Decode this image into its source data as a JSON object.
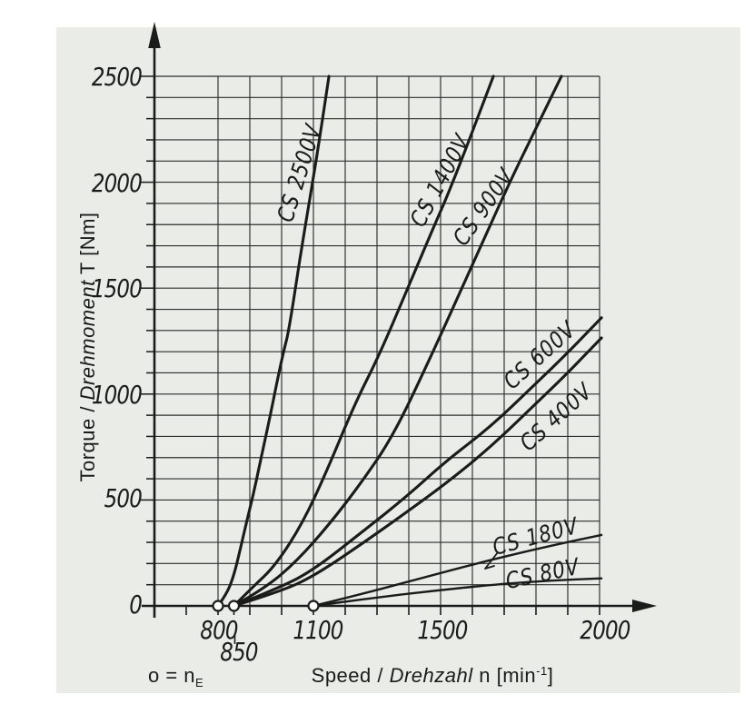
{
  "page": {
    "background": "#ffffff",
    "panel_color": "#e9ece7",
    "ink": "#1b1b1b",
    "grid_color": "#2e2e2e"
  },
  "chart_data": {
    "type": "line",
    "title": "",
    "x_axis": {
      "label": {
        "pre": "Speed / ",
        "italic": "Drehzahl",
        "post": " n [min",
        "sup": "-1",
        "close": "]"
      },
      "tick_labels": [
        {
          "value": 800,
          "label": "800"
        },
        {
          "value": 850,
          "label": "850"
        },
        {
          "value": 1100,
          "label": "1100"
        },
        {
          "value": 1500,
          "label": "1500"
        },
        {
          "value": 2000,
          "label": "2000"
        }
      ],
      "grid": {
        "min": 800,
        "max": 2000,
        "step": 100
      },
      "ticks": {
        "min": 700,
        "max": 2000,
        "step": 100,
        "extra": [
          850
        ]
      },
      "xlim": [
        600,
        2100
      ]
    },
    "y_axis": {
      "label": {
        "pre": "Torque / ",
        "italic": "Drehmoment",
        "post": " T [Nm]"
      },
      "tick_labels": [
        {
          "value": 0,
          "label": "0"
        },
        {
          "value": 500,
          "label": "500"
        },
        {
          "value": 1000,
          "label": "1000"
        },
        {
          "value": 1500,
          "label": "1500"
        },
        {
          "value": 2000,
          "label": "2000"
        },
        {
          "value": 2500,
          "label": "2500"
        }
      ],
      "grid": {
        "min": 100,
        "max": 2500,
        "step": 100
      },
      "ylim": [
        0,
        2500
      ]
    },
    "note": {
      "main": "o = n",
      "sub": "E"
    },
    "engagement_speeds": [
      800,
      850,
      1100
    ],
    "series": [
      {
        "label": "CS 2500V",
        "n_e": 800,
        "points": [
          [
            800,
            0
          ],
          [
            829,
            60
          ],
          [
            851,
            150
          ],
          [
            871,
            275
          ],
          [
            891,
            405
          ],
          [
            914,
            545
          ],
          [
            940,
            730
          ],
          [
            965,
            905
          ],
          [
            985,
            1055
          ],
          [
            1006,
            1200
          ],
          [
            1023,
            1300
          ],
          [
            1063,
            1695
          ],
          [
            1109,
            2100
          ],
          [
            1149,
            2500
          ]
        ]
      },
      {
        "label": "CS 1400V",
        "n_e": 850,
        "points": [
          [
            850,
            0
          ],
          [
            910,
            90
          ],
          [
            980,
            190
          ],
          [
            1066,
            390
          ],
          [
            1143,
            640
          ],
          [
            1229,
            950
          ],
          [
            1306,
            1180
          ],
          [
            1394,
            1490
          ],
          [
            1470,
            1760
          ],
          [
            1537,
            1990
          ],
          [
            1666,
            2500
          ]
        ]
      },
      {
        "label": "CS 900V",
        "n_e": 850,
        "points": [
          [
            850,
            0
          ],
          [
            950,
            85
          ],
          [
            1050,
            215
          ],
          [
            1150,
            385
          ],
          [
            1250,
            580
          ],
          [
            1350,
            800
          ],
          [
            1466,
            1165
          ],
          [
            1600,
            1610
          ],
          [
            1714,
            1990
          ],
          [
            1800,
            2255
          ],
          [
            1880,
            2500
          ]
        ]
      },
      {
        "label": "CS 600V",
        "n_e": 850,
        "points": [
          [
            850,
            0
          ],
          [
            1000,
            90
          ],
          [
            1100,
            170
          ],
          [
            1250,
            345
          ],
          [
            1400,
            525
          ],
          [
            1514,
            680
          ],
          [
            1657,
            845
          ],
          [
            1800,
            1050
          ],
          [
            1900,
            1195
          ],
          [
            2006,
            1360
          ]
        ]
      },
      {
        "label": "CS 400V",
        "n_e": 850,
        "points": [
          [
            850,
            0
          ],
          [
            1000,
            70
          ],
          [
            1100,
            140
          ],
          [
            1250,
            290
          ],
          [
            1400,
            450
          ],
          [
            1514,
            575
          ],
          [
            1650,
            740
          ],
          [
            1800,
            955
          ],
          [
            1900,
            1100
          ],
          [
            2006,
            1265
          ]
        ]
      },
      {
        "label": "CS 180V",
        "n_e": 1100,
        "points": [
          [
            1100,
            0
          ],
          [
            1250,
            55
          ],
          [
            1450,
            135
          ],
          [
            1650,
            215
          ],
          [
            1850,
            285
          ],
          [
            2006,
            335
          ]
        ]
      },
      {
        "label": "CS 80V",
        "n_e": 1100,
        "points": [
          [
            1100,
            0
          ],
          [
            1300,
            40
          ],
          [
            1500,
            75
          ],
          [
            1700,
            105
          ],
          [
            1850,
            120
          ],
          [
            2006,
            130
          ]
        ]
      }
    ]
  }
}
